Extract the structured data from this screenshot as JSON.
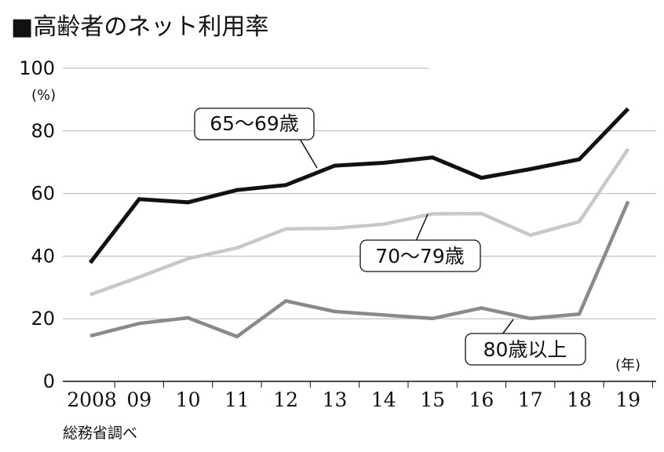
{
  "title": "■高齢者のネット利用率",
  "source": "総務省調べ",
  "chart_data": {
    "type": "line",
    "categories": [
      "2008",
      "09",
      "10",
      "11",
      "12",
      "13",
      "14",
      "15",
      "16",
      "17",
      "18",
      "19"
    ],
    "ylabel": "(%)",
    "xlabel": "(年)",
    "ylim": [
      0,
      100
    ],
    "yticks": [
      "0",
      "20",
      "40",
      "60",
      "80",
      "100"
    ],
    "grid": true,
    "series": [
      {
        "name": "65〜69歳",
        "color": "#111111",
        "values": [
          37.9,
          58.2,
          57.2,
          61.1,
          62.7,
          68.9,
          69.8,
          71.5,
          65.0,
          67.8,
          70.9,
          87.1
        ]
      },
      {
        "name": "70〜79歳",
        "color": "#c8c8c8",
        "values": [
          27.7,
          33.3,
          39.2,
          42.6,
          48.7,
          48.9,
          50.2,
          53.5,
          53.6,
          46.7,
          51.0,
          74.2
        ]
      },
      {
        "name": "80歳以上",
        "color": "#8a8a8a",
        "values": [
          14.5,
          18.5,
          20.3,
          14.3,
          25.7,
          22.3,
          21.2,
          20.1,
          23.4,
          20.1,
          21.5,
          57.5
        ]
      }
    ]
  }
}
